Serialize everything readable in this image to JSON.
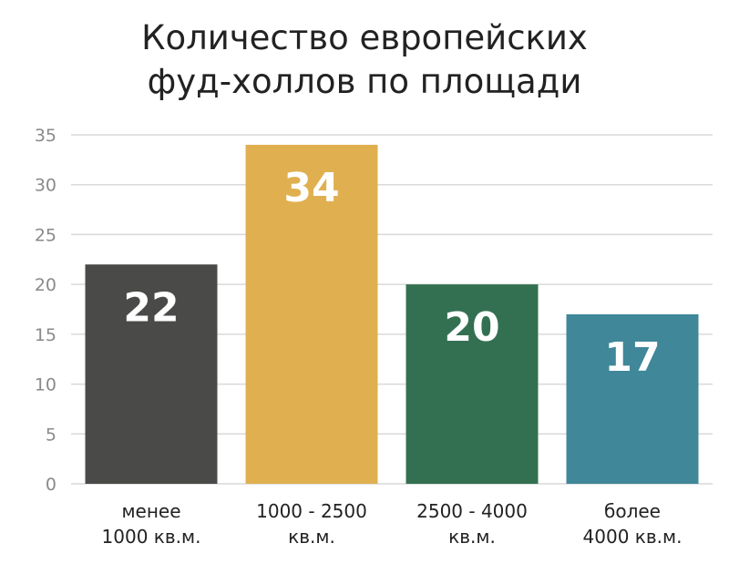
{
  "chart_data": {
    "type": "bar",
    "title_lines": [
      "Количество европейских",
      "фуд-холлов по площади"
    ],
    "categories": [
      [
        "менее",
        "1000 кв.м."
      ],
      [
        "1000 - 2500",
        "кв.м."
      ],
      [
        "2500 - 4000",
        "кв.м."
      ],
      [
        "более",
        "4000 кв.м."
      ]
    ],
    "values": [
      22,
      34,
      20,
      17
    ],
    "data_labels": [
      "22",
      "34",
      "20",
      "17"
    ],
    "colors": [
      "#4a4b49",
      "#e0b050",
      "#337052",
      "#3f8799"
    ],
    "ylim": [
      0,
      35
    ],
    "yticks": [
      0,
      5,
      10,
      15,
      20,
      25,
      30,
      35
    ],
    "grid": true,
    "xlabel": "",
    "ylabel": ""
  }
}
